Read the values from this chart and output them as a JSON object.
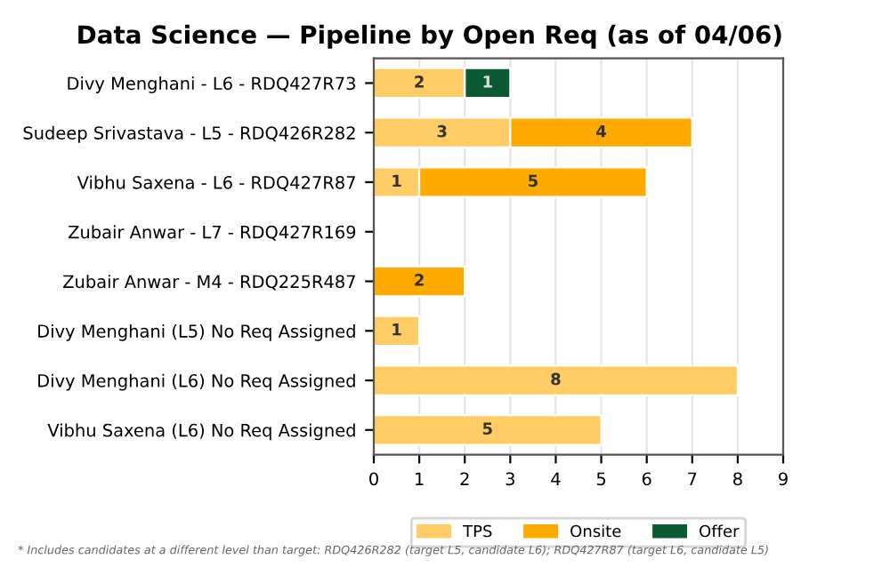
{
  "chart_data": {
    "type": "bar",
    "title": "Data Science — Pipeline by Open Req (as of 04/06)",
    "orientation": "horizontal",
    "stacked": true,
    "categories": [
      "Divy Menghani - L6 - RDQ427R73",
      "Sudeep Srivastava - L5 - RDQ426R282",
      "Vibhu Saxena - L6 - RDQ427R87",
      "Zubair Anwar - L7 - RDQ427R169",
      "Zubair Anwar - M4 - RDQ225R487",
      "Divy Menghani (L5) No Req Assigned",
      "Divy Menghani (L6) No Req Assigned",
      "Vibhu Saxena (L6) No Req Assigned"
    ],
    "series": [
      {
        "name": "TPS",
        "color": "#ffcc66",
        "values": [
          2,
          3,
          1,
          null,
          null,
          1,
          8,
          5
        ]
      },
      {
        "name": "Onsite",
        "color": "#ffaa00",
        "values": [
          null,
          4,
          5,
          null,
          2,
          null,
          null,
          null
        ]
      },
      {
        "name": "Offer",
        "color": "#0b5a33",
        "values": [
          1,
          null,
          null,
          null,
          null,
          null,
          null,
          null
        ]
      }
    ],
    "xlim": [
      0,
      9
    ],
    "xticks": [
      0,
      1,
      2,
      3,
      4,
      5,
      6,
      7,
      8,
      9
    ],
    "grid": "x",
    "legend": "bottom",
    "data_labels": true,
    "annotations": [
      "* Includes candidates at a different level than target: RDQ426R282 (target L5, candidate L6); RDQ427R87 (target L6, candidate L5)"
    ]
  }
}
